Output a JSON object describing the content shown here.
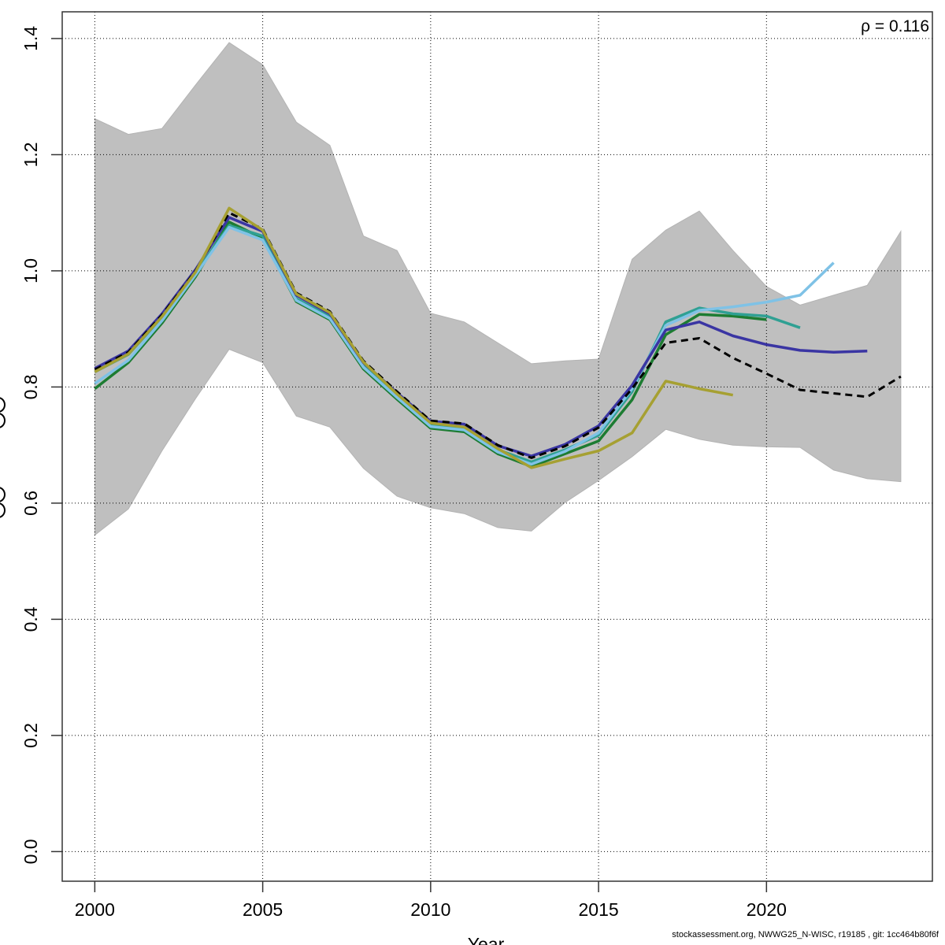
{
  "footer": {
    "text": "stockassessment.org, NWWG25_N-WISC, r19185 , git: 1cc464b80f6f"
  },
  "chart_data": {
    "type": "line",
    "title": "",
    "xlabel": "Year",
    "ylabel": "",
    "grid": true,
    "legend_position": "none",
    "annotations": {
      "rho": "ρ = 0.116"
    },
    "x_ticks": [
      2000,
      2005,
      2010,
      2015,
      2020
    ],
    "y_ticks": [
      "0.0",
      "0.2",
      "0.4",
      "0.6",
      "0.8",
      "1.0",
      "1.2",
      "1.4"
    ],
    "xlim": [
      1999.03,
      2024.94
    ],
    "ylim": [
      -0.051,
      1.446
    ],
    "band": {
      "label": "base-run-confidence-band",
      "color": "#bfbfbf",
      "years": [
        2000,
        2001,
        2002,
        2003,
        2004,
        2005,
        2006,
        2007,
        2008,
        2009,
        2010,
        2011,
        2012,
        2013,
        2014,
        2015,
        2016,
        2017,
        2018,
        2019,
        2020,
        2021,
        2022,
        2023,
        2024
      ],
      "upper": [
        1.262,
        1.235,
        1.245,
        1.32,
        1.393,
        1.355,
        1.256,
        1.216,
        1.06,
        1.035,
        0.927,
        0.912,
        0.876,
        0.84,
        0.845,
        0.848,
        1.02,
        1.07,
        1.103,
        1.035,
        0.973,
        0.941,
        0.958,
        0.975,
        1.068
      ],
      "lower": [
        0.545,
        0.59,
        0.69,
        0.78,
        0.865,
        0.842,
        0.75,
        0.731,
        0.66,
        0.612,
        0.592,
        0.582,
        0.558,
        0.552,
        0.601,
        0.639,
        0.68,
        0.727,
        0.71,
        0.7,
        0.697,
        0.696,
        0.657,
        0.642,
        0.637
      ]
    },
    "series": [
      {
        "name": "peel-ending-2020-green",
        "color": "#1d7c32",
        "dashed": false,
        "start_year": 2000,
        "values": [
          0.797,
          0.842,
          0.91,
          0.99,
          1.084,
          1.056,
          0.947,
          0.916,
          0.831,
          0.779,
          0.729,
          0.723,
          0.685,
          0.663,
          0.685,
          0.707,
          0.778,
          0.89,
          0.925,
          0.922,
          0.916
        ]
      },
      {
        "name": "peel-ending-2021-teal",
        "color": "#2fa093",
        "dashed": false,
        "start_year": 2000,
        "values": [
          0.826,
          0.856,
          0.92,
          0.996,
          1.078,
          1.06,
          0.952,
          0.921,
          0.837,
          0.785,
          0.735,
          0.729,
          0.692,
          0.671,
          0.692,
          0.717,
          0.792,
          0.912,
          0.936,
          0.926,
          0.922,
          0.902
        ]
      },
      {
        "name": "peel-ending-2022-lightblue",
        "color": "#7fc2e6",
        "dashed": false,
        "start_year": 2000,
        "values": [
          0.806,
          0.846,
          0.914,
          0.993,
          1.075,
          1.053,
          0.949,
          0.918,
          0.834,
          0.782,
          0.732,
          0.726,
          0.688,
          0.667,
          0.689,
          0.721,
          0.797,
          0.906,
          0.932,
          0.938,
          0.946,
          0.958,
          1.014
        ]
      },
      {
        "name": "peel-ending-2023-navy",
        "color": "#3a35a3",
        "dashed": false,
        "start_year": 2000,
        "values": [
          0.832,
          0.862,
          0.926,
          1.002,
          1.092,
          1.068,
          0.958,
          0.926,
          0.842,
          0.79,
          0.741,
          0.736,
          0.699,
          0.681,
          0.701,
          0.733,
          0.803,
          0.898,
          0.912,
          0.888,
          0.873,
          0.863,
          0.86,
          0.862
        ]
      },
      {
        "name": "base-run-2024-black-dashed",
        "color": "#000000",
        "dashed": true,
        "start_year": 2000,
        "values": [
          0.83,
          0.86,
          0.924,
          1.0,
          1.1,
          1.072,
          0.962,
          0.93,
          0.845,
          0.792,
          0.742,
          0.737,
          0.7,
          0.678,
          0.698,
          0.73,
          0.797,
          0.876,
          0.884,
          0.85,
          0.823,
          0.795,
          0.789,
          0.783,
          0.818
        ]
      },
      {
        "name": "peel-ending-2019-olive",
        "color": "#a6a032",
        "dashed": false,
        "start_year": 2000,
        "values": [
          0.826,
          0.857,
          0.921,
          0.998,
          1.108,
          1.07,
          0.96,
          0.928,
          0.843,
          0.788,
          0.738,
          0.731,
          0.694,
          0.661,
          0.676,
          0.69,
          0.721,
          0.81,
          0.797,
          0.786
        ]
      }
    ]
  }
}
